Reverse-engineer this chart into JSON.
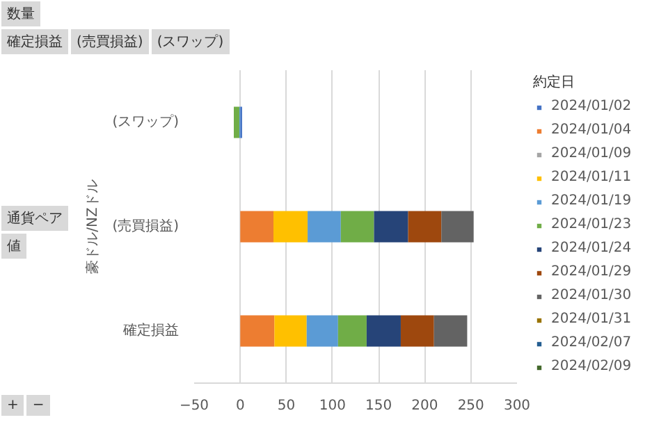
{
  "chart_data": {
    "type": "bar",
    "orientation": "horizontal",
    "stacked": true,
    "categories": [
      "(スワップ)",
      "(売買損益)",
      "確定損益"
    ],
    "ylabel": "豪ドル/NZドル",
    "legend_title": "約定日",
    "annotations": [
      "数量",
      "確定損益",
      "(売買損益)",
      "(スワップ)",
      "通貨ペア",
      "値",
      "+",
      "−"
    ],
    "xlim": [
      -50,
      300
    ],
    "xticks": [
      -50,
      0,
      50,
      100,
      150,
      200,
      250,
      300
    ],
    "grid": "x",
    "legend": "right",
    "series": [
      {
        "name": "2024/01/02",
        "color": "#4472c4",
        "values": [
          2,
          null,
          null
        ]
      },
      {
        "name": "2024/01/04",
        "color": "#ed7d31",
        "values": [
          null,
          36,
          37
        ]
      },
      {
        "name": "2024/01/09",
        "color": "#a5a5a5",
        "values": [
          null,
          null,
          null
        ]
      },
      {
        "name": "2024/01/11",
        "color": "#ffc000",
        "values": [
          null,
          37,
          35
        ]
      },
      {
        "name": "2024/01/19",
        "color": "#5b9bd5",
        "values": [
          -1,
          36,
          34
        ]
      },
      {
        "name": "2024/01/23",
        "color": "#70ad47",
        "values": [
          -6,
          36,
          31
        ]
      },
      {
        "name": "2024/01/24",
        "color": "#264478",
        "values": [
          null,
          37,
          37
        ]
      },
      {
        "name": "2024/01/29",
        "color": "#9e480e",
        "values": [
          null,
          36,
          36
        ]
      },
      {
        "name": "2024/01/30",
        "color": "#636363",
        "values": [
          null,
          35,
          36
        ]
      },
      {
        "name": "2024/01/31",
        "color": "#997300",
        "values": [
          null,
          null,
          null
        ]
      },
      {
        "name": "2024/02/07",
        "color": "#255e91",
        "values": [
          null,
          null,
          null
        ]
      },
      {
        "name": "2024/02/09",
        "color": "#43682b",
        "values": [
          null,
          null,
          null
        ]
      }
    ]
  }
}
